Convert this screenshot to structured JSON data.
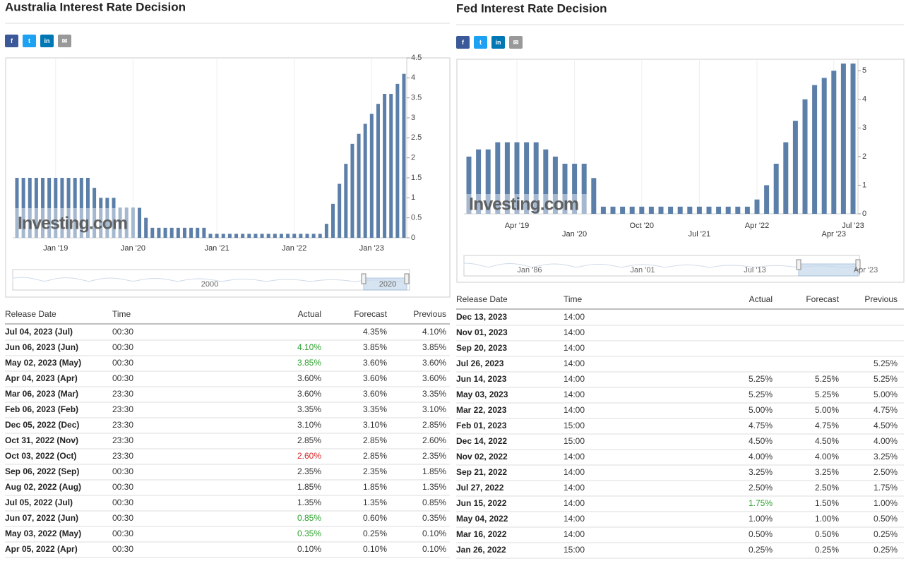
{
  "panels": [
    {
      "title": "Australia Interest Rate Decision",
      "chart": {
        "type": "bar",
        "color": "#5b7fa8",
        "watermark": "Investing.com",
        "categories": [
          null,
          null,
          null,
          null,
          null,
          null,
          "Jan '19",
          null,
          null,
          null,
          null,
          null,
          null,
          null,
          null,
          null,
          null,
          null,
          "Jan '20",
          null,
          null,
          null,
          null,
          null,
          null,
          null,
          null,
          null,
          null,
          null,
          null,
          "Jan '21",
          null,
          null,
          null,
          null,
          null,
          null,
          null,
          null,
          null,
          null,
          null,
          "Jan '22",
          null,
          null,
          null,
          null,
          null,
          null,
          null,
          null,
          null,
          null,
          null,
          "Jan '23",
          null,
          null,
          null,
          null,
          null
        ],
        "values": [
          1.5,
          1.5,
          1.5,
          1.5,
          1.5,
          1.5,
          1.5,
          1.5,
          1.5,
          1.5,
          1.5,
          1.5,
          1.25,
          1,
          1,
          1,
          0.75,
          0.75,
          0.75,
          0.75,
          0.5,
          0.25,
          0.25,
          0.25,
          0.25,
          0.25,
          0.25,
          0.25,
          0.25,
          0.25,
          0.1,
          0.1,
          0.1,
          0.1,
          0.1,
          0.1,
          0.1,
          0.1,
          0.1,
          0.1,
          0.1,
          0.1,
          0.1,
          0.1,
          0.1,
          0.1,
          0.1,
          0.1,
          0.35,
          0.85,
          1.35,
          1.85,
          2.35,
          2.6,
          2.85,
          3.1,
          3.35,
          3.6,
          3.6,
          3.85,
          4.1
        ],
        "ylim": [
          0,
          4.5
        ],
        "yticks": [
          0,
          0.5,
          1,
          1.5,
          2,
          2.5,
          3,
          3.5,
          4,
          4.5
        ],
        "navigator_labels": [
          "2000",
          "2020"
        ]
      },
      "table": {
        "headers": [
          "Release Date",
          "Time",
          "Actual",
          "Forecast",
          "Previous"
        ],
        "rows": [
          {
            "date": "Jul 04, 2023 (Jul)",
            "time": "00:30",
            "forecast": "4.35%",
            "previous": "4.10%"
          },
          {
            "date": "Jun 06, 2023 (Jun)",
            "time": "00:30",
            "actual": "4.10%",
            "actual_color": "#2ca02c",
            "forecast": "3.85%",
            "previous": "3.85%"
          },
          {
            "date": "May 02, 2023 (May)",
            "time": "00:30",
            "actual": "3.85%",
            "actual_color": "#2ca02c",
            "forecast": "3.60%",
            "previous": "3.60%"
          },
          {
            "date": "Apr 04, 2023 (Apr)",
            "time": "00:30",
            "actual": "3.60%",
            "forecast": "3.60%",
            "previous": "3.60%"
          },
          {
            "date": "Mar 06, 2023 (Mar)",
            "time": "23:30",
            "actual": "3.60%",
            "forecast": "3.60%",
            "previous": "3.35%"
          },
          {
            "date": "Feb 06, 2023 (Feb)",
            "time": "23:30",
            "actual": "3.35%",
            "forecast": "3.35%",
            "previous": "3.10%"
          },
          {
            "date": "Dec 05, 2022 (Dec)",
            "time": "23:30",
            "actual": "3.10%",
            "forecast": "3.10%",
            "previous": "2.85%"
          },
          {
            "date": "Oct 31, 2022 (Nov)",
            "time": "23:30",
            "actual": "2.85%",
            "forecast": "2.85%",
            "previous": "2.60%"
          },
          {
            "date": "Oct 03, 2022 (Oct)",
            "time": "23:30",
            "actual": "2.60%",
            "actual_color": "#d62728",
            "forecast": "2.85%",
            "previous": "2.35%"
          },
          {
            "date": "Sep 06, 2022 (Sep)",
            "time": "00:30",
            "actual": "2.35%",
            "forecast": "2.35%",
            "previous": "1.85%"
          },
          {
            "date": "Aug 02, 2022 (Aug)",
            "time": "00:30",
            "actual": "1.85%",
            "forecast": "1.85%",
            "previous": "1.35%"
          },
          {
            "date": "Jul 05, 2022 (Jul)",
            "time": "00:30",
            "actual": "1.35%",
            "forecast": "1.35%",
            "previous": "0.85%"
          },
          {
            "date": "Jun 07, 2022 (Jun)",
            "time": "00:30",
            "actual": "0.85%",
            "actual_color": "#2ca02c",
            "forecast": "0.60%",
            "previous": "0.35%"
          },
          {
            "date": "May 03, 2022 (May)",
            "time": "00:30",
            "actual": "0.35%",
            "actual_color": "#2ca02c",
            "forecast": "0.25%",
            "previous": "0.10%"
          },
          {
            "date": "Apr 05, 2022 (Apr)",
            "time": "00:30",
            "actual": "0.10%",
            "forecast": "0.10%",
            "previous": "0.10%"
          }
        ]
      }
    },
    {
      "title": "Fed Interest Rate Decision",
      "chart": {
        "type": "bar",
        "color": "#5b7fa8",
        "watermark": "Investing.com",
        "categories": [
          null,
          null,
          null,
          null,
          null,
          "Apr '19",
          null,
          null,
          null,
          null,
          null,
          "Jan '20",
          null,
          null,
          null,
          null,
          null,
          null,
          "Oct '20",
          null,
          null,
          null,
          null,
          null,
          "Jul '21",
          null,
          null,
          null,
          null,
          null,
          "Apr '22",
          null,
          null,
          null,
          null,
          null,
          null,
          null,
          "Apr '23",
          null,
          "Jul '23"
        ],
        "values": [
          2,
          2.25,
          2.25,
          2.5,
          2.5,
          2.5,
          2.5,
          2.5,
          2.25,
          2,
          1.75,
          1.75,
          1.75,
          1.25,
          0.25,
          0.25,
          0.25,
          0.25,
          0.25,
          0.25,
          0.25,
          0.25,
          0.25,
          0.25,
          0.25,
          0.25,
          0.25,
          0.25,
          0.25,
          0.25,
          0.5,
          1,
          1.75,
          2.5,
          3.25,
          4,
          4.5,
          4.75,
          5,
          5.25,
          5.25
        ],
        "ylim": [
          0,
          5.4
        ],
        "yticks": [
          0,
          1,
          2,
          3,
          4,
          5
        ],
        "navigator_labels": [
          "Jan '86",
          "Jan '01",
          "Jul '13",
          "Apr '23"
        ]
      },
      "table": {
        "headers": [
          "Release Date",
          "Time",
          "Actual",
          "Forecast",
          "Previous"
        ],
        "rows": [
          {
            "date": "Dec 13, 2023",
            "time": "14:00"
          },
          {
            "date": "Nov 01, 2023",
            "time": "14:00"
          },
          {
            "date": "Sep 20, 2023",
            "time": "14:00"
          },
          {
            "date": "Jul 26, 2023",
            "time": "14:00",
            "previous": "5.25%"
          },
          {
            "date": "Jun 14, 2023",
            "time": "14:00",
            "actual": "5.25%",
            "forecast": "5.25%",
            "previous": "5.25%"
          },
          {
            "date": "May 03, 2023",
            "time": "14:00",
            "actual": "5.25%",
            "forecast": "5.25%",
            "previous": "5.00%"
          },
          {
            "date": "Mar 22, 2023",
            "time": "14:00",
            "actual": "5.00%",
            "forecast": "5.00%",
            "previous": "4.75%"
          },
          {
            "date": "Feb 01, 2023",
            "time": "15:00",
            "actual": "4.75%",
            "forecast": "4.75%",
            "previous": "4.50%"
          },
          {
            "date": "Dec 14, 2022",
            "time": "15:00",
            "actual": "4.50%",
            "forecast": "4.50%",
            "previous": "4.00%"
          },
          {
            "date": "Nov 02, 2022",
            "time": "14:00",
            "actual": "4.00%",
            "forecast": "4.00%",
            "previous": "3.25%"
          },
          {
            "date": "Sep 21, 2022",
            "time": "14:00",
            "actual": "3.25%",
            "forecast": "3.25%",
            "previous": "2.50%"
          },
          {
            "date": "Jul 27, 2022",
            "time": "14:00",
            "actual": "2.50%",
            "forecast": "2.50%",
            "previous": "1.75%"
          },
          {
            "date": "Jun 15, 2022",
            "time": "14:00",
            "actual": "1.75%",
            "actual_color": "#2ca02c",
            "forecast": "1.50%",
            "previous": "1.00%"
          },
          {
            "date": "May 04, 2022",
            "time": "14:00",
            "actual": "1.00%",
            "forecast": "1.00%",
            "previous": "0.50%"
          },
          {
            "date": "Mar 16, 2022",
            "time": "14:00",
            "actual": "0.50%",
            "forecast": "0.50%",
            "previous": "0.25%"
          },
          {
            "date": "Jan 26, 2022",
            "time": "15:00",
            "actual": "0.25%",
            "forecast": "0.25%",
            "previous": "0.25%"
          }
        ]
      }
    }
  ]
}
